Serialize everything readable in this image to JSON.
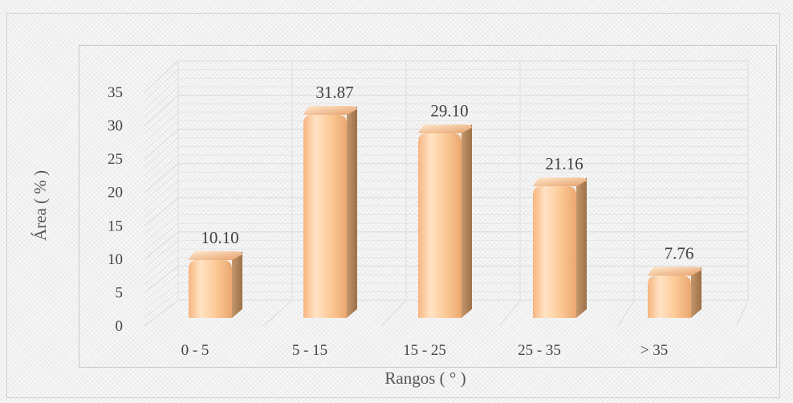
{
  "chart_data": {
    "type": "bar",
    "categories": [
      "0 - 5",
      "5 - 15",
      "15 - 25",
      "25 - 35",
      "> 35"
    ],
    "values": [
      10.1,
      31.87,
      29.1,
      21.16,
      7.76
    ],
    "data_labels": [
      "10.10",
      "31.87",
      "29.10",
      "21.16",
      "7.76"
    ],
    "y_ticks": [
      "0",
      "5",
      "10",
      "15",
      "20",
      "25",
      "30",
      "35"
    ],
    "ylim": [
      0,
      35
    ],
    "xlabel": "Rangos ( ° )",
    "ylabel": "Área ( % )",
    "grid": true,
    "legend": "none",
    "style": "3d-cylinder",
    "colors": {
      "bar_front": "#fcc690",
      "bar_highlight": "#ffe3c4",
      "bar_side": "#b58a5e",
      "bar_top": "#e9a875",
      "grid": "#dcdcdc"
    }
  }
}
